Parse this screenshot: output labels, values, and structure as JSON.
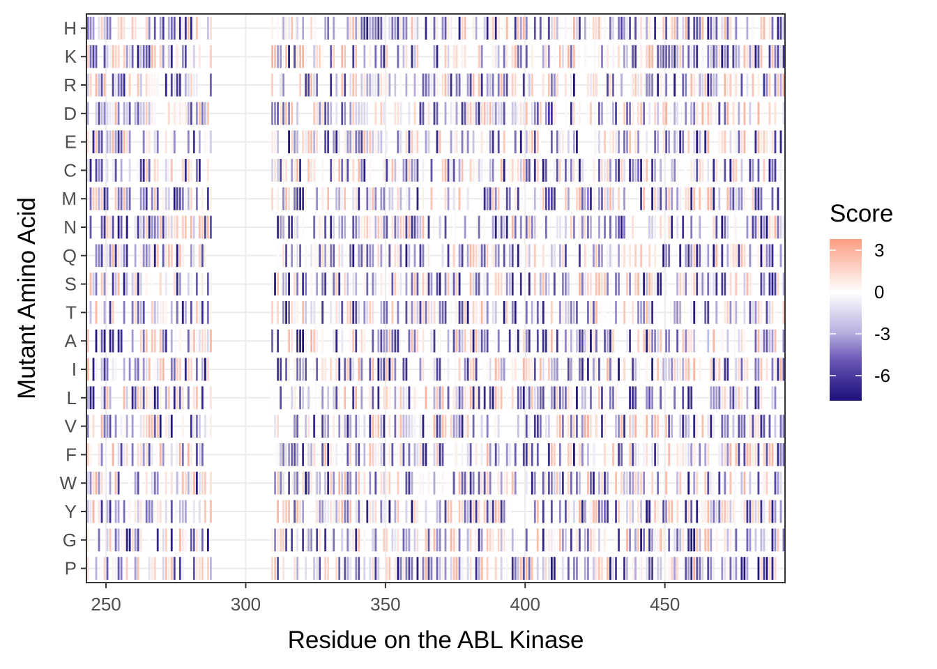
{
  "chart_data": {
    "type": "heatmap",
    "xlabel": "Residue on the ABL Kinase",
    "ylabel": "Mutant Amino Acid",
    "x_range": [
      243,
      493
    ],
    "x_ticks": [
      250,
      300,
      350,
      400,
      450
    ],
    "x_tick_labels": [
      "250",
      "300",
      "350",
      "400",
      "450"
    ],
    "missing_residue_range": [
      288,
      308
    ],
    "y_categories": [
      "H",
      "K",
      "R",
      "D",
      "E",
      "C",
      "M",
      "N",
      "Q",
      "S",
      "T",
      "A",
      "I",
      "L",
      "V",
      "F",
      "W",
      "Y",
      "G",
      "P"
    ],
    "grid": true,
    "legend": {
      "title": "Score",
      "position": "right",
      "min": -7.8,
      "max": 3.8,
      "ticks": [
        3,
        0,
        -3,
        -6
      ],
      "tick_labels": [
        "3",
        "0",
        "-3",
        "-6"
      ]
    },
    "color_scale": {
      "low": "#1a0f7a",
      "mid_low": "#9d8fcf",
      "mid": "#ffffff",
      "high": "#fc9d82"
    },
    "scores_note_values": "per-row score strings below; one value per residue from 243 to 492; 'N' means no data",
    "scores": {
      "H": "",
      "K": "",
      "R": "",
      "D": "",
      "E": "",
      "C": "",
      "M": "",
      "N": "",
      "Q": "",
      "S": "",
      "T": "",
      "A": "",
      "I": "",
      "L": "",
      "V": "",
      "F": "",
      "W": "",
      "Y": "",
      "G": "",
      "P": ""
    }
  }
}
